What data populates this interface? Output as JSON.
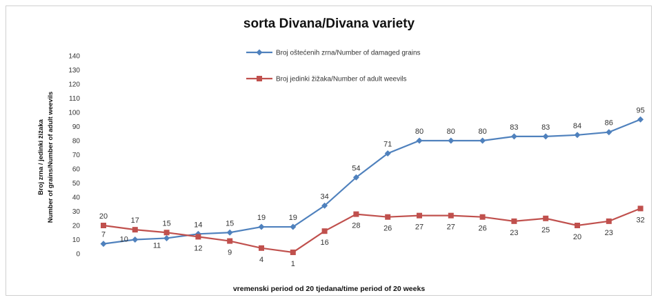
{
  "chart_data": {
    "type": "line",
    "title": "sorta Divana/Divana variety",
    "xlabel": "vremenski period od 20 tjedana/time period of 20 weeks",
    "ylabel": [
      "Broj zrna / jedinki žižaka",
      "Number of grains/Number of adult weevils"
    ],
    "ylim": [
      0,
      140
    ],
    "yticks": [
      0,
      10,
      20,
      30,
      40,
      50,
      60,
      70,
      80,
      90,
      100,
      110,
      120,
      130,
      140
    ],
    "x": [
      1,
      2,
      3,
      4,
      5,
      6,
      7,
      8,
      9,
      10,
      11,
      12,
      13,
      14,
      15,
      16,
      17,
      18
    ],
    "grid": false,
    "legend_position": "top-center",
    "series": [
      {
        "name": "Broj oštećenih zrna/Number of damaged grains",
        "color": "#4f81bd",
        "marker": "diamond",
        "values": [
          7,
          10,
          11,
          14,
          15,
          19,
          19,
          34,
          54,
          71,
          80,
          80,
          80,
          83,
          83,
          84,
          86,
          95
        ]
      },
      {
        "name": "Broj jedinki žižaka/Number of adult weevils",
        "color": "#c0504d",
        "marker": "square",
        "values": [
          20,
          17,
          15,
          12,
          9,
          4,
          1,
          16,
          28,
          26,
          27,
          27,
          26,
          23,
          25,
          20,
          23,
          32
        ]
      }
    ]
  }
}
